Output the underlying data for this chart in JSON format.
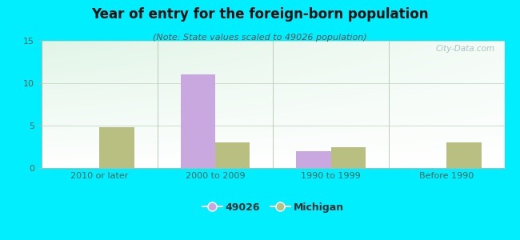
{
  "categories": [
    "2010 or later",
    "2000 to 2009",
    "1990 to 1999",
    "Before 1990"
  ],
  "values_49026": [
    0,
    11,
    2,
    0
  ],
  "values_michigan": [
    4.8,
    3.0,
    2.5,
    3.0
  ],
  "color_49026": "#c9a8e0",
  "color_michigan": "#b8bf80",
  "title": "Year of entry for the foreign-born population",
  "subtitle": "(Note: State values scaled to 49026 population)",
  "legend_49026": "49026",
  "legend_michigan": "Michigan",
  "ylim": [
    0,
    15
  ],
  "yticks": [
    0,
    5,
    10,
    15
  ],
  "background_outer": "#00eeff",
  "bar_width": 0.3,
  "title_fontsize": 12,
  "subtitle_fontsize": 8,
  "tick_fontsize": 8,
  "legend_fontsize": 9,
  "watermark": "City-Data.com"
}
